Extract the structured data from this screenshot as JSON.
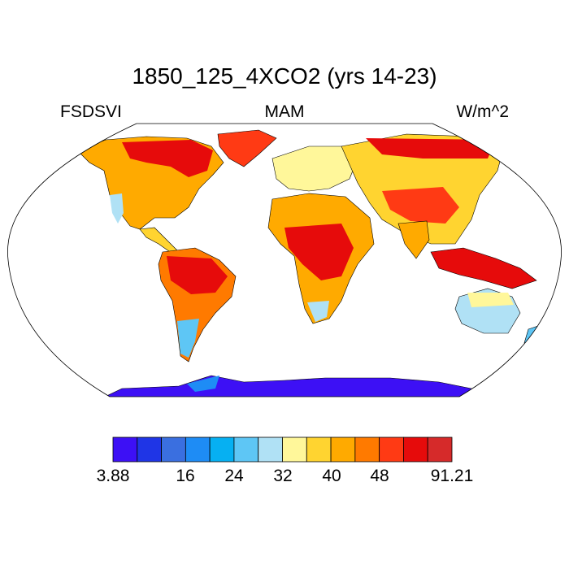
{
  "title": "1850_125_4XCO2 (yrs 14-23)",
  "left_label": "FSDSVI",
  "center_label": "MAM",
  "right_label": "W/m^2",
  "colorbar": {
    "colors": [
      "#3d10f5",
      "#1f35e6",
      "#3a6fe0",
      "#1e8cf5",
      "#06b0f2",
      "#5ec6f5",
      "#b0e1f5",
      "#fff79a",
      "#ffd430",
      "#ffaa00",
      "#ff7a00",
      "#ff3a14",
      "#e60b0b",
      "#d62a2a"
    ],
    "tick_labels": [
      "3.88",
      "16",
      "24",
      "32",
      "40",
      "48",
      "91.21"
    ]
  },
  "map": {
    "projection": "Robinson",
    "ocean_color": "#ffffff",
    "coastline_color": "#000000"
  }
}
